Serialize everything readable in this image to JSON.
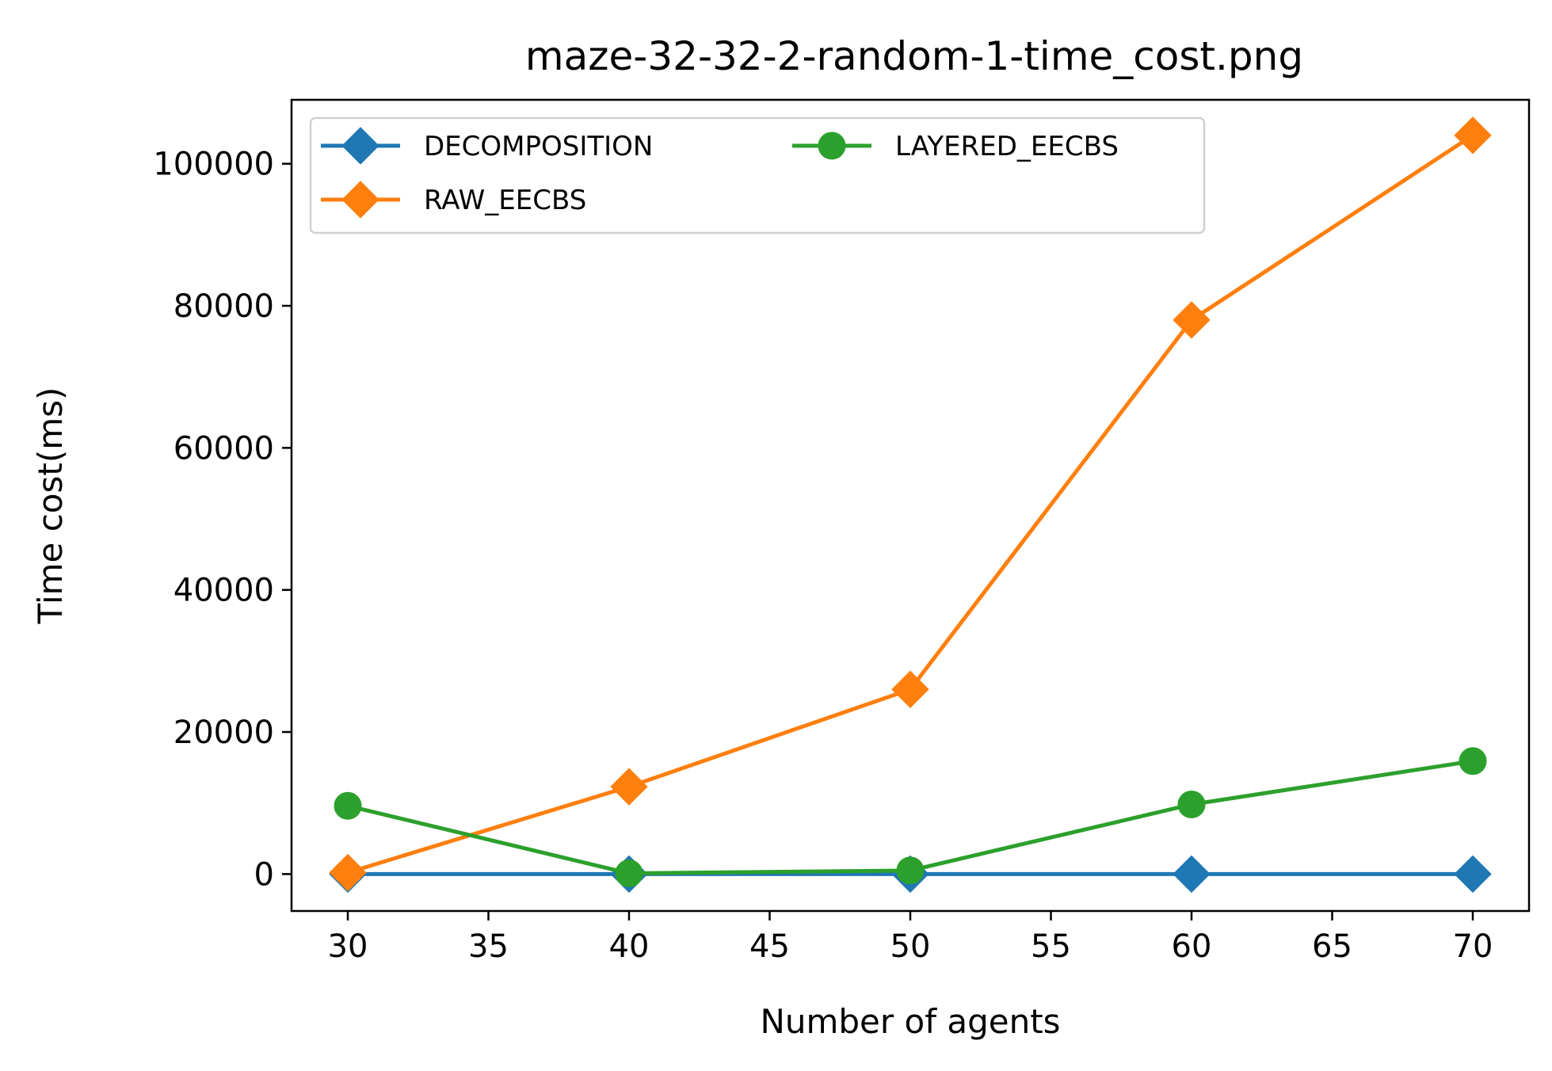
{
  "chart_data": {
    "type": "line",
    "title": "maze-32-32-2-random-1-time_cost.png",
    "xlabel": "Number of agents",
    "ylabel": "Time cost(ms)",
    "x": [
      30,
      40,
      50,
      60,
      70
    ],
    "xlim": [
      28,
      72
    ],
    "ylim": [
      -5200,
      109000
    ],
    "xticks": [
      "30",
      "35",
      "40",
      "45",
      "50",
      "55",
      "60",
      "65",
      "70"
    ],
    "yticks": [
      "0",
      "20000",
      "40000",
      "60000",
      "80000",
      "100000"
    ],
    "grid": false,
    "legend_position": "upper-left",
    "series": [
      {
        "name": "DECOMPOSITION",
        "color": "#1f77b4",
        "marker": "diamond",
        "values": [
          0,
          0,
          0,
          0,
          0
        ]
      },
      {
        "name": "RAW_EECBS",
        "color": "#ff7f0e",
        "marker": "diamond",
        "values": [
          200,
          12300,
          26000,
          78000,
          104000
        ]
      },
      {
        "name": "LAYERED_EECBS",
        "color": "#2ca02c",
        "marker": "circle",
        "values": [
          9600,
          100,
          500,
          9800,
          15900
        ]
      }
    ]
  }
}
